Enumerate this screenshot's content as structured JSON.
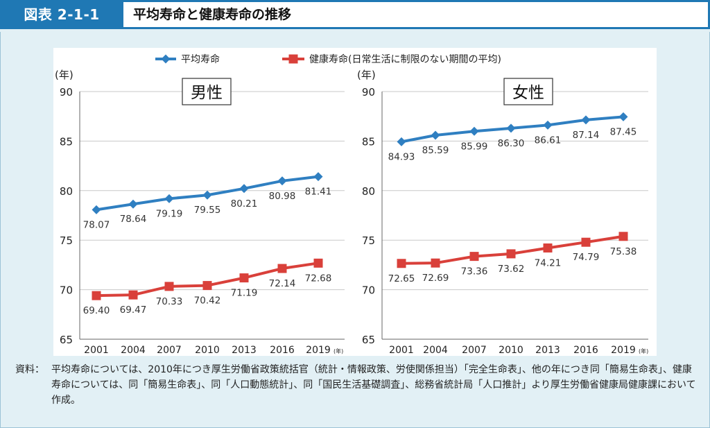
{
  "header": {
    "badge": "図表 2-1-1",
    "title": "平均寿命と健康寿命の推移"
  },
  "legend": {
    "avg": "平均寿命",
    "healthy": "健康寿命(日常生活に制限のない期間の平均)"
  },
  "colors": {
    "avg": "#2f7fc1",
    "healthy": "#d9403a",
    "grid": "#c8c8c8"
  },
  "chart_data": [
    {
      "type": "line",
      "title": "男性",
      "ylabel": "(年)",
      "xunit": "(年)",
      "ylim": [
        65,
        90
      ],
      "yticks": [
        65,
        70,
        75,
        80,
        85,
        90
      ],
      "categories": [
        "2001",
        "2004",
        "2007",
        "2010",
        "2013",
        "2016",
        "2019"
      ],
      "x_values": [
        2001,
        2004,
        2007,
        2010,
        2013,
        2016,
        2019
      ],
      "series": [
        {
          "name": "平均寿命",
          "values": [
            78.07,
            78.64,
            79.19,
            79.55,
            80.21,
            80.98,
            81.41
          ]
        },
        {
          "name": "健康寿命(日常生活に制限のない期間の平均)",
          "values": [
            69.4,
            69.47,
            70.33,
            70.42,
            71.19,
            72.14,
            72.68
          ]
        }
      ]
    },
    {
      "type": "line",
      "title": "女性",
      "ylabel": "(年)",
      "xunit": "(年)",
      "ylim": [
        65,
        90
      ],
      "yticks": [
        65,
        70,
        75,
        80,
        85,
        90
      ],
      "categories": [
        "2001",
        "2004",
        "2007",
        "2010",
        "2013",
        "2016",
        "2019"
      ],
      "x_values": [
        2001,
        2004,
        2007,
        2010,
        2013,
        2016,
        2019
      ],
      "series": [
        {
          "name": "平均寿命",
          "values": [
            84.93,
            85.59,
            85.99,
            86.3,
            86.61,
            87.14,
            87.45
          ]
        },
        {
          "name": "健康寿命(日常生活に制限のない期間の平均)",
          "values": [
            72.65,
            72.69,
            73.36,
            73.62,
            74.21,
            74.79,
            75.38
          ]
        }
      ]
    }
  ],
  "note": {
    "label": "資料：",
    "text": "平均寿命については、2010年につき厚生労働省政策統括官（統計・情報政策、労使関係担当）「完全生命表」、他の年につき同「簡易生命表」、健康寿命については、同「簡易生命表」、同「人口動態統計」、同「国民生活基礎調査」、総務省統計局「人口推計」より厚生労働省健康局健康課において作成。"
  }
}
